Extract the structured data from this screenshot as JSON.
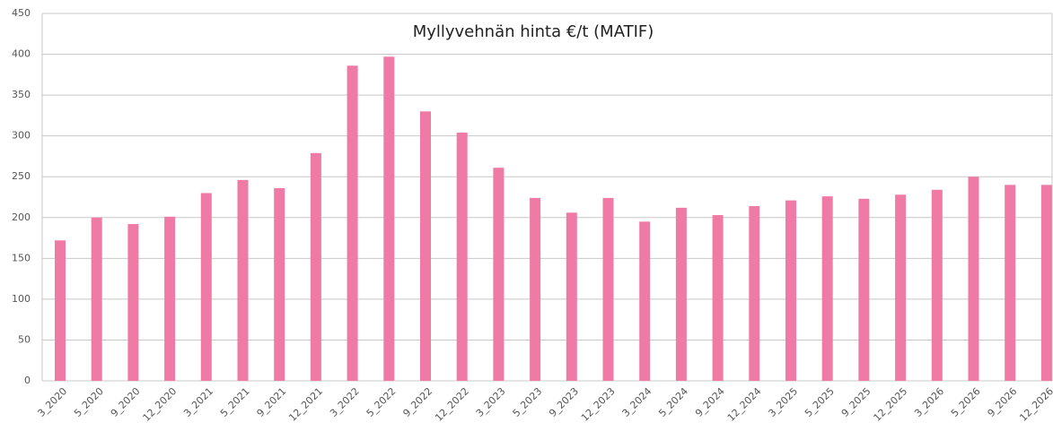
{
  "chart_data": {
    "type": "bar",
    "title": "Myllyvehnän hinta €/t (MATIF)",
    "categories": [
      "3_2020",
      "5_2020",
      "9_2020",
      "12_2020",
      "3_2021",
      "5_2021",
      "9_2021",
      "12_2021",
      "3_2022",
      "5_2022",
      "9_2022",
      "12_2022",
      "3_2023",
      "5_2023",
      "9_2023",
      "12_2023",
      "3_2024",
      "5_2024",
      "9_2024",
      "12_2024",
      "3_2025",
      "5_2025",
      "9_2025",
      "12_2025",
      "3_2026",
      "5_2026",
      "9_2026",
      "12_2026"
    ],
    "values": [
      172,
      200,
      192,
      201,
      230,
      246,
      236,
      279,
      386,
      397,
      330,
      304,
      261,
      224,
      206,
      224,
      195,
      212,
      203,
      214,
      221,
      226,
      223,
      228,
      234,
      250,
      240,
      240
    ],
    "color": "#f07aa6",
    "ylim": [
      0,
      450
    ],
    "yticks": [
      0,
      50,
      100,
      150,
      200,
      250,
      300,
      350,
      400,
      450
    ],
    "grid": true
  }
}
